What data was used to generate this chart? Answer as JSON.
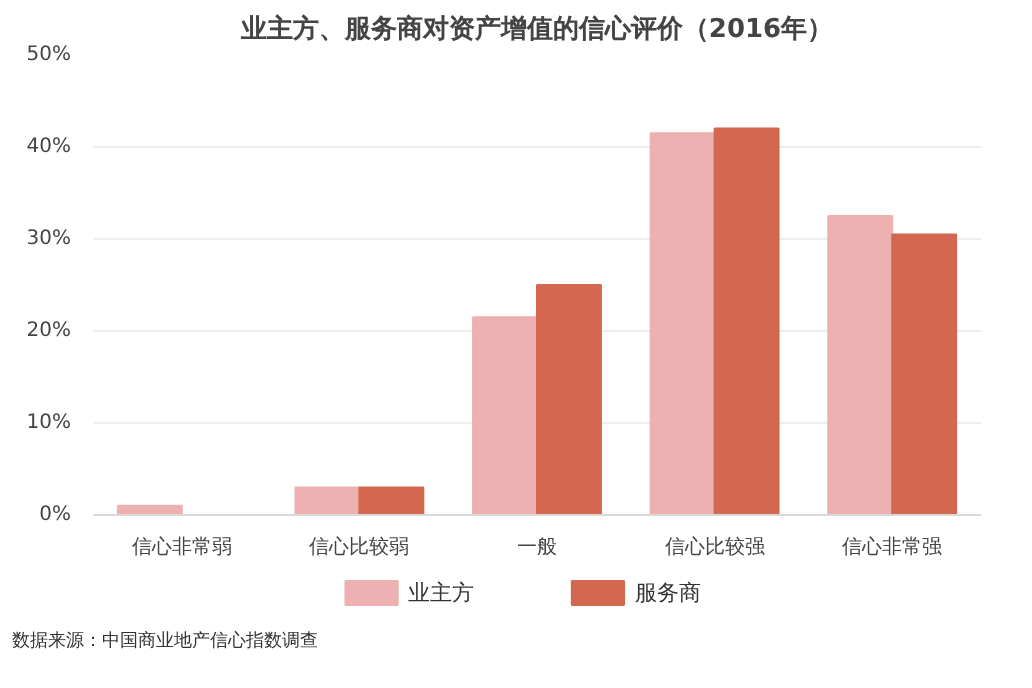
{
  "chart_data": {
    "type": "bar",
    "title": "业主方、服务商对资产增值的信心评价（2016年）",
    "categories": [
      "信心非常弱",
      "信心比较弱",
      "一般",
      "信心比较强",
      "信心非常强"
    ],
    "series": [
      {
        "name": "业主方",
        "color": "#ecb1b0",
        "values": [
          1,
          3,
          21.5,
          41.5,
          32.5
        ]
      },
      {
        "name": "服务商",
        "color": "#d3674f",
        "values": [
          0,
          3,
          25,
          42,
          30.5
        ]
      }
    ],
    "ylim": [
      0,
      50
    ],
    "yticks": [
      {
        "value": 0,
        "label": "0%"
      },
      {
        "value": 10,
        "label": "10%"
      },
      {
        "value": 20,
        "label": "20%"
      },
      {
        "value": 30,
        "label": "30%"
      },
      {
        "value": 40,
        "label": "40%"
      },
      {
        "value": 50,
        "label": "50%"
      }
    ],
    "grid": "y",
    "legend": "bottom",
    "annotations": [
      "数据来源：中国商业地产信心指数调查"
    ]
  }
}
